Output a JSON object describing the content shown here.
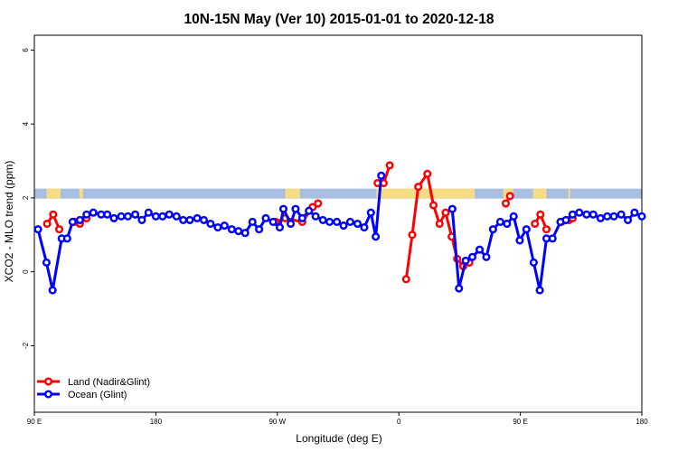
{
  "chart_data": {
    "type": "line",
    "title": "10N-15N May (Ver 10)   2015-01-01 to 2020-12-18",
    "xlabel": "Longitude (deg E)",
    "ylabel": "XCO2 - MLO trend (ppm)",
    "xlim": [
      0,
      100
    ],
    "ylim": [
      -3.8,
      6.4
    ],
    "x_ticks": [
      {
        "value": 0,
        "label": "90 E"
      },
      {
        "value": 20,
        "label": "180"
      },
      {
        "value": 40,
        "label": "90 W"
      },
      {
        "value": 60,
        "label": "0"
      },
      {
        "value": 80,
        "label": "90 E"
      },
      {
        "value": 100,
        "label": "180"
      }
    ],
    "y_ticks": [
      {
        "value": -2,
        "label": "-2"
      },
      {
        "value": 0,
        "label": "0"
      },
      {
        "value": 2,
        "label": "2"
      },
      {
        "value": 4,
        "label": "4"
      },
      {
        "value": 6,
        "label": "6"
      }
    ],
    "legend_position": "bottom-left",
    "colors": {
      "land": "#ff0000",
      "ocean": "#0000ff",
      "map_ocean": "#a8bfe2",
      "map_land": "#f7dc86"
    },
    "series": [
      {
        "name": "Land (Nadir&Glint)",
        "color": "#ff0000",
        "segments": [
          [
            [
              2.1,
              1.3
            ],
            [
              3.1,
              1.55
            ],
            [
              4.1,
              1.15
            ]
          ],
          [
            [
              6.6,
              1.35
            ],
            [
              7.5,
              1.3
            ],
            [
              8.6,
              1.45
            ]
          ],
          [
            [
              39.7,
              1.35
            ],
            [
              41.3,
              1.45
            ],
            [
              44.1,
              1.35
            ],
            [
              45.8,
              1.75
            ],
            [
              46.7,
              1.85
            ]
          ],
          [
            [
              56.5,
              2.4
            ],
            [
              57.5,
              2.4
            ],
            [
              58.5,
              2.88
            ]
          ],
          [
            [
              61.2,
              -0.2
            ],
            [
              62.2,
              1.0
            ],
            [
              63.2,
              2.3
            ],
            [
              64.7,
              2.65
            ],
            [
              65.7,
              1.8
            ],
            [
              66.7,
              1.3
            ],
            [
              67.7,
              1.6
            ],
            [
              68.7,
              0.95
            ],
            [
              69.6,
              0.35
            ],
            [
              70.6,
              0.15
            ],
            [
              71.6,
              0.25
            ]
          ],
          [
            [
              77.6,
              1.85
            ],
            [
              78.3,
              2.05
            ]
          ],
          [
            [
              82.4,
              1.3
            ],
            [
              83.3,
              1.55
            ],
            [
              84.3,
              1.15
            ]
          ],
          [
            [
              86.8,
              1.35
            ],
            [
              88.0,
              1.4
            ],
            [
              88.6,
              1.45
            ]
          ]
        ]
      },
      {
        "name": "Ocean (Glint)",
        "color": "#0000ff",
        "segments": [
          [
            [
              0.6,
              1.15
            ],
            [
              2.0,
              0.25
            ],
            [
              3.0,
              -0.5
            ],
            [
              4.5,
              0.9
            ],
            [
              5.4,
              0.9
            ],
            [
              6.3,
              1.35
            ],
            [
              7.5,
              1.4
            ],
            [
              8.6,
              1.55
            ],
            [
              9.7,
              1.6
            ],
            [
              11.0,
              1.55
            ],
            [
              12.0,
              1.55
            ],
            [
              13.1,
              1.45
            ],
            [
              14.3,
              1.5
            ],
            [
              15.4,
              1.5
            ],
            [
              16.6,
              1.55
            ],
            [
              17.7,
              1.4
            ],
            [
              18.8,
              1.6
            ],
            [
              20.0,
              1.5
            ],
            [
              21.1,
              1.5
            ],
            [
              22.2,
              1.55
            ],
            [
              23.4,
              1.5
            ],
            [
              24.5,
              1.4
            ],
            [
              25.6,
              1.4
            ],
            [
              26.8,
              1.45
            ],
            [
              27.9,
              1.4
            ],
            [
              29.0,
              1.3
            ],
            [
              30.2,
              1.2
            ],
            [
              31.3,
              1.25
            ],
            [
              32.5,
              1.15
            ],
            [
              33.6,
              1.1
            ],
            [
              34.7,
              1.05
            ],
            [
              35.9,
              1.35
            ],
            [
              37.0,
              1.15
            ],
            [
              38.1,
              1.45
            ],
            [
              39.3,
              1.35
            ],
            [
              40.4,
              1.2
            ],
            [
              41.0,
              1.7
            ],
            [
              42.2,
              1.3
            ],
            [
              43.0,
              1.7
            ],
            [
              44.1,
              1.45
            ],
            [
              45.2,
              1.65
            ],
            [
              46.3,
              1.5
            ],
            [
              47.5,
              1.4
            ],
            [
              48.6,
              1.35
            ],
            [
              49.8,
              1.35
            ],
            [
              50.9,
              1.25
            ],
            [
              52.0,
              1.35
            ],
            [
              53.2,
              1.3
            ],
            [
              54.3,
              1.2
            ],
            [
              55.4,
              1.6
            ],
            [
              56.2,
              0.95
            ],
            [
              57.1,
              2.6
            ]
          ],
          [
            [
              68.8,
              1.7
            ],
            [
              69.9,
              -0.45
            ],
            [
              71.0,
              0.3
            ],
            [
              72.1,
              0.4
            ],
            [
              73.3,
              0.6
            ],
            [
              74.4,
              0.4
            ],
            [
              75.5,
              1.15
            ],
            [
              76.7,
              1.35
            ],
            [
              77.8,
              1.3
            ],
            [
              78.9,
              1.5
            ],
            [
              79.9,
              0.85
            ],
            [
              81.0,
              1.15
            ],
            [
              82.2,
              0.25
            ],
            [
              83.2,
              -0.5
            ],
            [
              84.3,
              0.9
            ],
            [
              85.3,
              0.9
            ],
            [
              86.6,
              1.35
            ],
            [
              87.5,
              1.4
            ],
            [
              88.6,
              1.55
            ],
            [
              89.7,
              1.6
            ],
            [
              90.9,
              1.55
            ],
            [
              92.0,
              1.55
            ],
            [
              93.2,
              1.45
            ],
            [
              94.3,
              1.5
            ],
            [
              95.4,
              1.5
            ],
            [
              96.6,
              1.55
            ],
            [
              97.7,
              1.4
            ],
            [
              98.8,
              1.6
            ],
            [
              100.0,
              1.5
            ]
          ]
        ]
      }
    ],
    "land_bands": [
      [
        2.0,
        4.3
      ],
      [
        7.4,
        8.0
      ],
      [
        41.3,
        43.7
      ],
      [
        56.3,
        72.5
      ],
      [
        77.2,
        78.8
      ],
      [
        82.1,
        84.3
      ],
      [
        87.9,
        88.2
      ]
    ]
  }
}
